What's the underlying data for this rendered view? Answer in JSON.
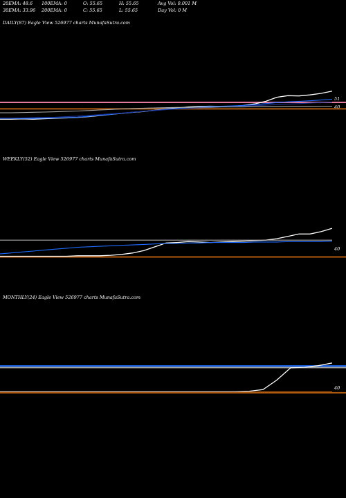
{
  "header": {
    "row1": [
      "20EMA: 48.6",
      "100EMA: 0",
      "O: 55.65",
      "H: 55.65",
      "Avg Vol: 0.001 M"
    ],
    "row2": [
      "30EMA: 33.96",
      "200EMA: 0",
      "C: 55.65",
      "L: 55.65",
      "Day Vol: 0  M"
    ]
  },
  "colors": {
    "background": "#000000",
    "price": "#ffffff",
    "ema_blue": "#1e6bff",
    "ema_navy": "#1a2f8c",
    "band_orange": "#b05a10",
    "daily_pink": "#e57aa0",
    "gray": "#aaaaaa"
  },
  "chart_data": [
    {
      "type": "line",
      "title": "DAILY(87) Eagle   View  526977 charts MunafaSutra.com",
      "ylabels": [
        "51",
        "40"
      ],
      "series": [
        {
          "color": "#ffffff",
          "values": [
            36,
            36,
            36.1,
            36,
            36.2,
            36.4,
            36.5,
            36.7,
            37,
            37.4,
            37.9,
            38.3,
            38.7,
            39,
            39.5,
            40,
            40.4,
            40.8,
            41,
            41.1,
            41,
            41,
            41.4,
            42,
            43,
            44.6,
            45.2,
            45.1,
            45.5,
            46.1,
            47
          ]
        },
        {
          "color": "#1e6bff",
          "values": [
            36.3,
            36.3,
            36.3,
            36.3,
            36.4,
            36.5,
            36.6,
            36.8,
            37.1,
            37.5,
            37.9,
            38.3,
            38.7,
            39.1,
            39.5,
            39.9,
            40.2,
            40.5,
            40.8,
            41,
            41.1,
            41.2,
            41.4,
            41.7,
            42.1,
            42.5,
            42.8,
            43,
            43.2,
            43.5,
            43.8
          ]
        },
        {
          "color": "#1a2f8c",
          "values": [
            36.4,
            36.4,
            36.5,
            36.6,
            36.7,
            36.8,
            37,
            37.2,
            37.5,
            37.8,
            38.1,
            38.4,
            38.8,
            39.1,
            39.4,
            39.7,
            40,
            40.2,
            40.4,
            40.6,
            40.8,
            41,
            41.1,
            41.3,
            41.5,
            41.7,
            41.9,
            42.1,
            42.3,
            42.5,
            42.7
          ]
        },
        {
          "color": "#aaaaaa",
          "values": [
            38.5,
            38.5,
            38.6,
            38.7,
            38.8,
            38.9,
            39.1,
            39.2,
            39.4,
            39.6,
            39.8,
            40,
            40.2,
            40.3,
            40.4,
            40.5,
            40.6,
            40.6,
            40.7,
            40.7,
            40.8,
            40.8,
            40.8,
            40.9,
            40.9,
            40.9,
            41,
            41,
            41,
            41.1,
            41.1
          ]
        }
      ],
      "hlines": [
        {
          "value": 42.6,
          "color": "#e57aa0"
        },
        {
          "value": 40.05,
          "color": "#b05a10"
        }
      ]
    },
    {
      "type": "line",
      "title": "WEEKLY(52) Eagle   View  526977 charts MunafaSutra.com",
      "ylabels": [
        "40"
      ],
      "series": [
        {
          "color": "#ffffff",
          "values": [
            35.8,
            35.8,
            35.8,
            35.8,
            35.8,
            35.8,
            35.8,
            35.9,
            35.9,
            35.9,
            36,
            36.2,
            36.5,
            37,
            37.8,
            38.6,
            38.7,
            38.9,
            38.8,
            38.7,
            38.8,
            38.9,
            39,
            39.1,
            39.2,
            39.5,
            40,
            40.5,
            40.5,
            41,
            41.7
          ]
        },
        {
          "color": "#1e6bff",
          "values": [
            36.3,
            36.5,
            36.7,
            36.9,
            37.1,
            37.3,
            37.5,
            37.7,
            37.8,
            37.9,
            38,
            38.1,
            38.2,
            38.3,
            38.4,
            38.5,
            38.5,
            38.6,
            38.6,
            38.7,
            38.7,
            38.7,
            38.7,
            38.8,
            38.8,
            38.8,
            38.9,
            38.9,
            38.9,
            38.9,
            39
          ]
        },
        {
          "color": "#aaaaaa",
          "values": [
            39.2,
            39.2,
            39.2,
            39.2,
            39.2,
            39.2,
            39.2,
            39.2,
            39.2,
            39.2,
            39.2,
            39.2,
            39.2,
            39.2,
            39.2,
            39.2,
            39.2,
            39.2,
            39.2,
            39.2,
            39.2,
            39.2,
            39.2,
            39.2,
            39.2,
            39.2,
            39.2,
            39.2,
            39.2,
            39.2,
            39.2
          ]
        }
      ],
      "hlines": [
        {
          "value": 35.65,
          "color": "#b05a10"
        }
      ]
    },
    {
      "type": "line",
      "title": "MONTHLY(24) Eagle   View  526977 charts MunafaSutra.com",
      "ylabels": [
        "40"
      ],
      "series": [
        {
          "color": "#ffffff",
          "values": [
            35.6,
            35.6,
            35.6,
            35.6,
            35.6,
            35.6,
            35.6,
            35.6,
            35.6,
            35.6,
            35.6,
            35.6,
            35.6,
            35.6,
            35.6,
            35.6,
            35.6,
            35.6,
            35.7,
            36,
            37.8,
            40.1,
            40.2,
            40.5,
            41
          ]
        },
        {
          "color": "#b05a10",
          "values": [
            35.5,
            35.5,
            35.5,
            35.5,
            35.5,
            35.5,
            35.5,
            35.5,
            35.5,
            35.5,
            35.5,
            35.5,
            35.5,
            35.5,
            35.5,
            35.5,
            35.5,
            35.5,
            35.55,
            35.6,
            35.6,
            35.6,
            35.6,
            35.6,
            35.6
          ]
        }
      ],
      "hlines": [
        {
          "value": 40.45,
          "color": "#1e6bff"
        },
        {
          "value": 40.15,
          "color": "#aaaaaa"
        },
        {
          "value": 35.4,
          "color": "#b05a10"
        }
      ]
    }
  ]
}
